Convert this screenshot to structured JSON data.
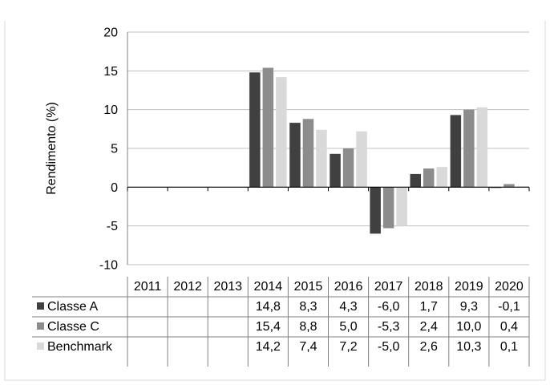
{
  "chart_data": {
    "type": "bar",
    "ylabel": "Rendimento (%)",
    "xlabel": "",
    "ylim": [
      -10,
      20
    ],
    "yticks": [
      -10,
      -5,
      0,
      5,
      10,
      15,
      20
    ],
    "grid": true,
    "legend": "table-left",
    "categories": [
      "2011",
      "2012",
      "2013",
      "2014",
      "2015",
      "2016",
      "2017",
      "2018",
      "2019",
      "2020"
    ],
    "series": [
      {
        "name": "Classe A",
        "color": "#404040",
        "values": [
          null,
          null,
          null,
          14.8,
          8.3,
          4.3,
          -6.0,
          1.7,
          9.3,
          -0.1
        ],
        "labels": [
          "",
          "",
          "",
          "14,8",
          "8,3",
          "4,3",
          "-6,0",
          "1,7",
          "9,3",
          "-0,1"
        ]
      },
      {
        "name": "Classe C",
        "color": "#8c8c8c",
        "values": [
          null,
          null,
          null,
          15.4,
          8.8,
          5.0,
          -5.3,
          2.4,
          10.0,
          0.4
        ],
        "labels": [
          "",
          "",
          "",
          "15,4",
          "8,8",
          "5,0",
          "-5,3",
          "2,4",
          "10,0",
          "0,4"
        ]
      },
      {
        "name": "Benchmark",
        "color": "#d9d9d9",
        "values": [
          null,
          null,
          null,
          14.2,
          7.4,
          7.2,
          -5.0,
          2.6,
          10.3,
          0.1
        ],
        "labels": [
          "",
          "",
          "",
          "14,2",
          "7,4",
          "7,2",
          "-5,0",
          "2,6",
          "10,3",
          "0,1"
        ]
      }
    ]
  }
}
